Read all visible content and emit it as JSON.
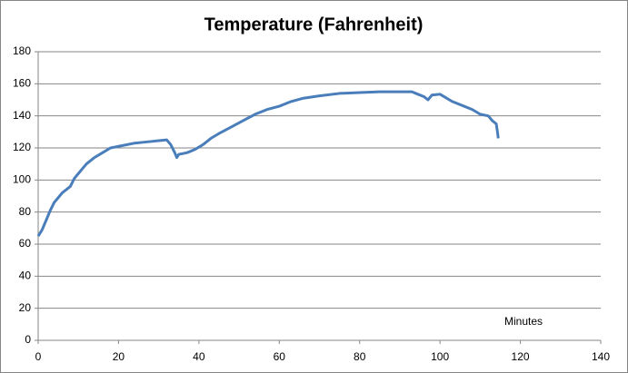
{
  "chart_data": {
    "type": "line",
    "title": "Temperature (Fahrenheit)",
    "x_label": "Minutes",
    "x": [
      0,
      0.5,
      1,
      2,
      3,
      4,
      5,
      6,
      7,
      8,
      9,
      10,
      11,
      12,
      14,
      16,
      18,
      20,
      22,
      24,
      26,
      28,
      30,
      32,
      33,
      34,
      34.5,
      35,
      37,
      39,
      41,
      43,
      45,
      48,
      51,
      54,
      57,
      60,
      63,
      66,
      70,
      75,
      80,
      85,
      90,
      93,
      94,
      96,
      97,
      98,
      100,
      101,
      103,
      106,
      108,
      110,
      112,
      113,
      114,
      114.3,
      114.5
    ],
    "series": [
      {
        "name": "Temperature",
        "color": "#4a7ebb",
        "values": [
          65,
          67,
          69,
          75,
          81,
          86,
          89,
          92,
          94,
          96,
          101,
          104,
          107,
          110,
          114,
          117,
          120,
          121,
          122,
          123,
          123.5,
          124,
          124.5,
          125,
          122,
          117,
          114,
          116,
          117,
          119,
          122,
          126,
          129,
          133,
          137,
          141,
          144,
          146,
          149,
          151,
          152.5,
          154,
          154.5,
          155,
          155,
          155,
          154,
          152,
          150,
          153,
          153.5,
          152,
          149,
          146,
          144,
          141,
          140,
          137,
          135,
          130,
          126
        ]
      }
    ],
    "xlim": [
      0,
      140
    ],
    "xticks": [
      0,
      20,
      40,
      60,
      80,
      100,
      120,
      140
    ],
    "ylim": [
      0,
      180
    ],
    "yticks": [
      0,
      20,
      40,
      60,
      80,
      100,
      120,
      140,
      160,
      180
    ],
    "grid": true
  }
}
